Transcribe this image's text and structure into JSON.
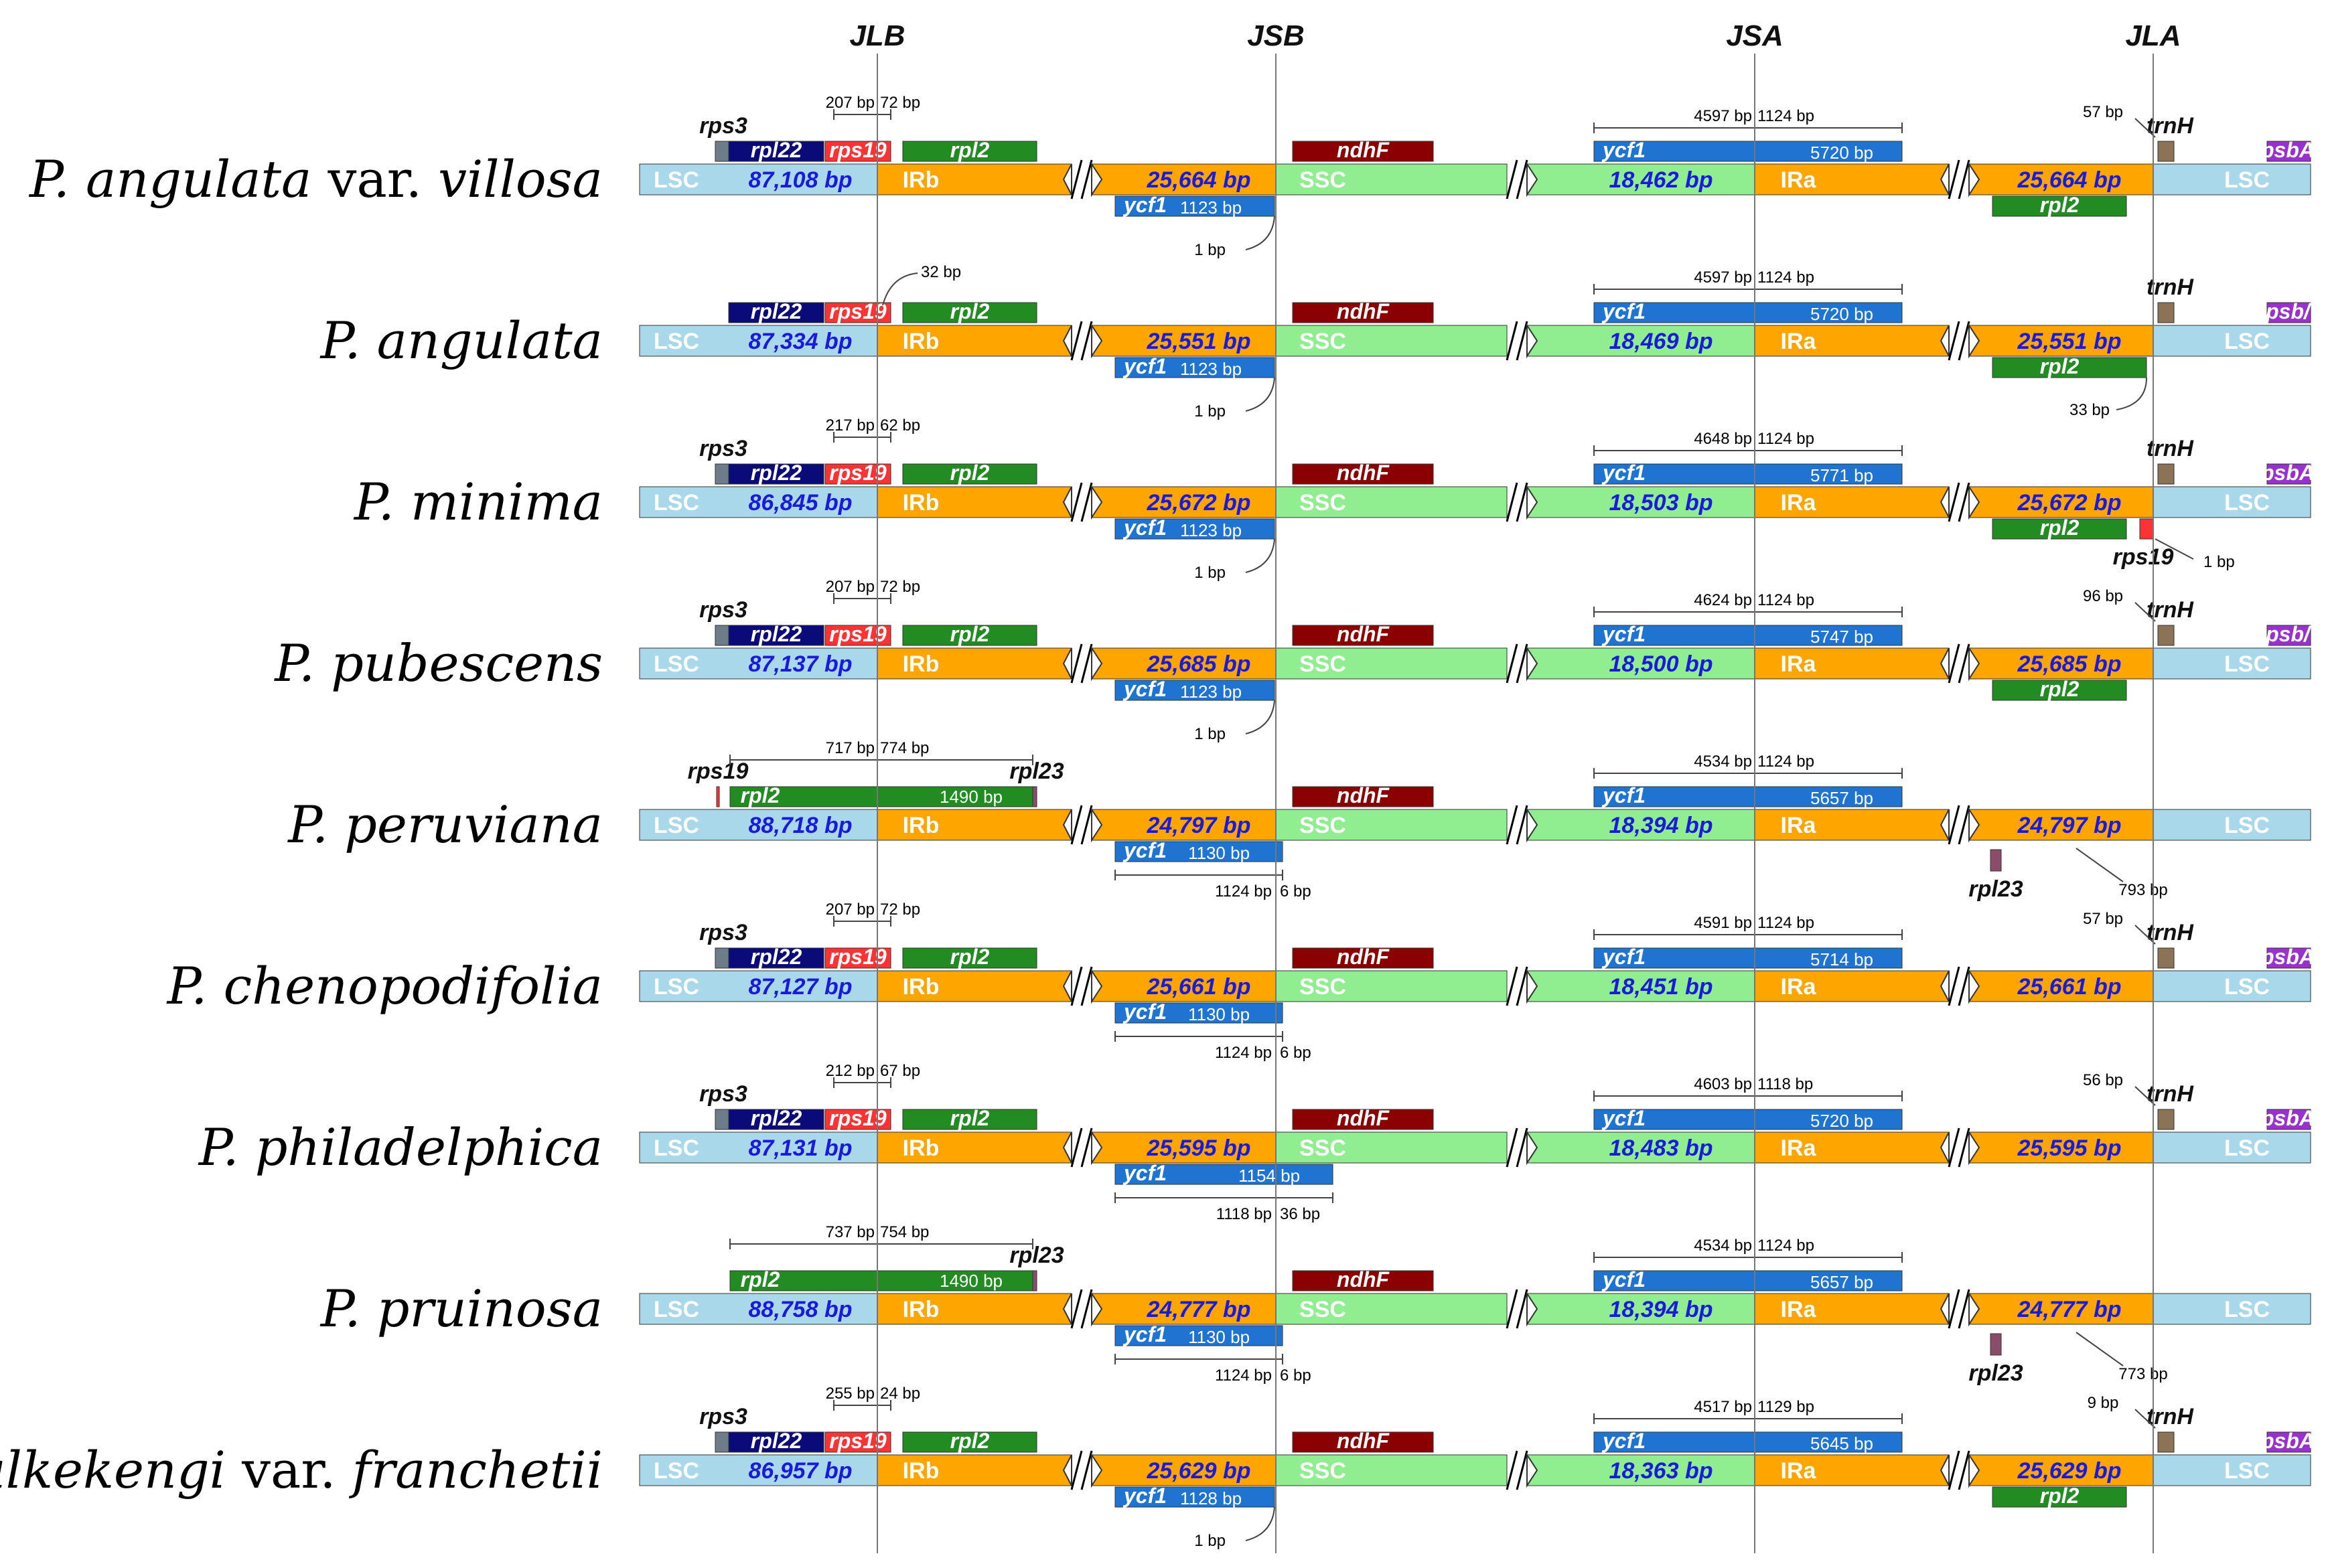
{
  "junctions": [
    "JLB",
    "JSB",
    "JSA",
    "JLA"
  ],
  "region_labels": {
    "lsc": "LSC",
    "irb": "IRb",
    "ssc": "SSC",
    "ira": "IRa"
  },
  "colors": {
    "lsc": "#a8d8ea",
    "ir": "#ffa500",
    "ssc": "#90ee90",
    "rpl22": "#0a0a78",
    "rps19": "#ff3333",
    "rpl2": "#228b22",
    "ndhF": "#8b0000",
    "ycf1": "#1e74d0",
    "trnH": "#8b7355",
    "psbA": "#9932cc",
    "rps3": "#6e7b8b",
    "rpl23": "#8b4c6a",
    "length_text": "#1a1adc"
  },
  "species": [
    {
      "genus": "P. ",
      "name": "angulata",
      "var": " var. ",
      "epithet": "villosa",
      "lsc": "87,108 bp",
      "irb": "25,664 bp",
      "ssc": "18,462 bp",
      "ira": "25,664 bp",
      "jlb": [
        "207 bp",
        "72 bp"
      ],
      "jsb_ycf1": "1123 bp",
      "jsb_note": "1 bp",
      "jsa": [
        "4597 bp",
        "1124 bp"
      ],
      "ycf1_len": "5720 bp",
      "jla_note": "57 bp",
      "genes": {
        "rps3": "rps3",
        "rpl22": "rpl22",
        "rps19": "rps19",
        "rpl2": "rpl2",
        "ndhF": "ndhF",
        "ycf1": "ycf1",
        "ycf1b": "ycf1",
        "trnH": "trnH",
        "psbA": "psbA",
        "rpl2b": "rpl2"
      }
    },
    {
      "genus": "P. ",
      "name": "angulata",
      "var": "",
      "epithet": "",
      "lsc": "87,334 bp",
      "irb": "25,551 bp",
      "ssc": "18,469 bp",
      "ira": "25,551 bp",
      "jlb_note": "32 bp",
      "jsb_ycf1": "1123 bp",
      "jsb_note": "1 bp",
      "jsa": [
        "4597 bp",
        "1124 bp"
      ],
      "ycf1_len": "5720 bp",
      "jla_note": "33 bp",
      "genes": {
        "rpl22": "rpl22",
        "rps19": "rps19",
        "rpl2": "rpl2",
        "ndhF": "ndhF",
        "ycf1": "ycf1",
        "ycf1b": "ycf1",
        "trnH": "trnH",
        "psbA": "psb/",
        "rpl2b": "rpl2"
      }
    },
    {
      "genus": "P. ",
      "name": "minima",
      "var": "",
      "epithet": "",
      "lsc": "86,845 bp",
      "irb": "25,672 bp",
      "ssc": "18,503 bp",
      "ira": "25,672 bp",
      "jlb": [
        "217 bp",
        "62 bp"
      ],
      "jsb_ycf1": "1123 bp",
      "jsb_note": "1 bp",
      "jsa": [
        "4648 bp",
        "1124 bp"
      ],
      "ycf1_len": "5771 bp",
      "jla_note": "1 bp",
      "genes": {
        "rps3": "rps3",
        "rpl22": "rpl22",
        "rps19": "rps19",
        "rpl2": "rpl2",
        "ndhF": "ndhF",
        "ycf1": "ycf1",
        "ycf1b": "ycf1",
        "trnH": "trnH",
        "psbA": "psbA",
        "rpl2b": "rpl2",
        "rps19b": "rps19"
      }
    },
    {
      "genus": "P. ",
      "name": "pubescens",
      "var": "",
      "epithet": "",
      "lsc": "87,137 bp",
      "irb": "25,685 bp",
      "ssc": "18,500 bp",
      "ira": "25,685 bp",
      "jlb": [
        "207 bp",
        "72 bp"
      ],
      "jsb_ycf1": "1123 bp",
      "jsb_note": "1 bp",
      "jsa": [
        "4624 bp",
        "1124 bp"
      ],
      "ycf1_len": "5747 bp",
      "jla_note": "96 bp",
      "genes": {
        "rps3": "rps3",
        "rpl22": "rpl22",
        "rps19": "rps19",
        "rpl2": "rpl2",
        "ndhF": "ndhF",
        "ycf1": "ycf1",
        "ycf1b": "ycf1",
        "trnH": "trnH",
        "psbA": "psb/",
        "rpl2b": "rpl2"
      }
    },
    {
      "genus": "P. ",
      "name": "peruviana",
      "var": "",
      "epithet": "",
      "lsc": "88,718 bp",
      "irb": "24,797 bp",
      "ssc": "18,394 bp",
      "ira": "24,797 bp",
      "jlb": [
        "717 bp",
        "774 bp"
      ],
      "rpl2_len": "1490 bp",
      "jsb_ycf1": "1130 bp",
      "jsb_split": [
        "1124 bp",
        "6 bp"
      ],
      "jsa": [
        "4534 bp",
        "1124 bp"
      ],
      "ycf1_len": "5657 bp",
      "jla_note": "793 bp",
      "genes": {
        "rps19": "rps19",
        "rpl2": "rpl2",
        "rpl23": "rpl23",
        "ndhF": "ndhF",
        "ycf1": "ycf1",
        "ycf1b": "ycf1",
        "rpl23b": "rpl23"
      }
    },
    {
      "genus": "P. ",
      "name": "chenopodifolia",
      "var": "",
      "epithet": "",
      "lsc": "87,127 bp",
      "irb": "25,661 bp",
      "ssc": "18,451 bp",
      "ira": "25,661 bp",
      "jlb": [
        "207 bp",
        "72 bp"
      ],
      "jsb_ycf1": "1130 bp",
      "jsb_split": [
        "1124 bp",
        "6 bp"
      ],
      "jsa": [
        "4591 bp",
        "1124 bp"
      ],
      "ycf1_len": "5714 bp",
      "jla_note": "57 bp",
      "genes": {
        "rps3": "rps3",
        "rpl22": "rpl22",
        "rps19": "rps19",
        "rpl2": "rpl2",
        "ndhF": "ndhF",
        "ycf1": "ycf1",
        "ycf1b": "ycf1",
        "trnH": "trnH",
        "psbA": "psbA"
      }
    },
    {
      "genus": "P. ",
      "name": "philadelphica",
      "var": "",
      "epithet": "",
      "lsc": "87,131 bp",
      "irb": "25,595 bp",
      "ssc": "18,483 bp",
      "ira": "25,595 bp",
      "jlb": [
        "212 bp",
        "67 bp"
      ],
      "jsb_ycf1": "1154 bp",
      "jsb_split": [
        "1118 bp",
        "36 bp"
      ],
      "jsa": [
        "4603 bp",
        "1118 bp"
      ],
      "ycf1_len": "5720 bp",
      "jla_note": "56 bp",
      "genes": {
        "rps3": "rps3",
        "rpl22": "rpl22",
        "rps19": "rps19",
        "rpl2": "rpl2",
        "ndhF": "ndhF",
        "ycf1": "ycf1",
        "ycf1b": "ycf1",
        "trnH": "trnH",
        "psbA": "psbA"
      }
    },
    {
      "genus": "P. ",
      "name": "pruinosa",
      "var": "",
      "epithet": "",
      "lsc": "88,758 bp",
      "irb": "24,777 bp",
      "ssc": "18,394 bp",
      "ira": "24,777 bp",
      "jlb": [
        "737 bp",
        "754 bp"
      ],
      "rpl2_len": "1490 bp",
      "jsb_ycf1": "1130 bp",
      "jsb_split": [
        "1124 bp",
        "6 bp"
      ],
      "jsa": [
        "4534 bp",
        "1124 bp"
      ],
      "ycf1_len": "5657 bp",
      "jla_note": "773 bp",
      "genes": {
        "rpl2": "rpl2",
        "rpl23": "rpl23",
        "ndhF": "ndhF",
        "ycf1": "ycf1",
        "ycf1b": "ycf1",
        "rpl23b": "rpl23"
      }
    },
    {
      "genus": "P. ",
      "name": "alkekengi",
      "var": " var. ",
      "epithet": "franchetii",
      "lsc": "86,957 bp",
      "irb": "25,629 bp",
      "ssc": "18,363 bp",
      "ira": "25,629 bp",
      "jlb": [
        "255 bp",
        "24 bp"
      ],
      "jsb_ycf1": "1128 bp",
      "jsb_note": "1 bp",
      "jsa": [
        "4517 bp",
        "1129 bp"
      ],
      "ycf1_len": "5645 bp",
      "jla_note": "9 bp",
      "genes": {
        "rps3": "rps3",
        "rpl22": "rpl22",
        "rps19": "rps19",
        "rpl2": "rpl2",
        "ndhF": "ndhF",
        "ycf1": "ycf1",
        "ycf1b": "ycf1",
        "trnH": "trnH",
        "psbA": "psbA",
        "rpl2b": "rpl2"
      }
    }
  ]
}
